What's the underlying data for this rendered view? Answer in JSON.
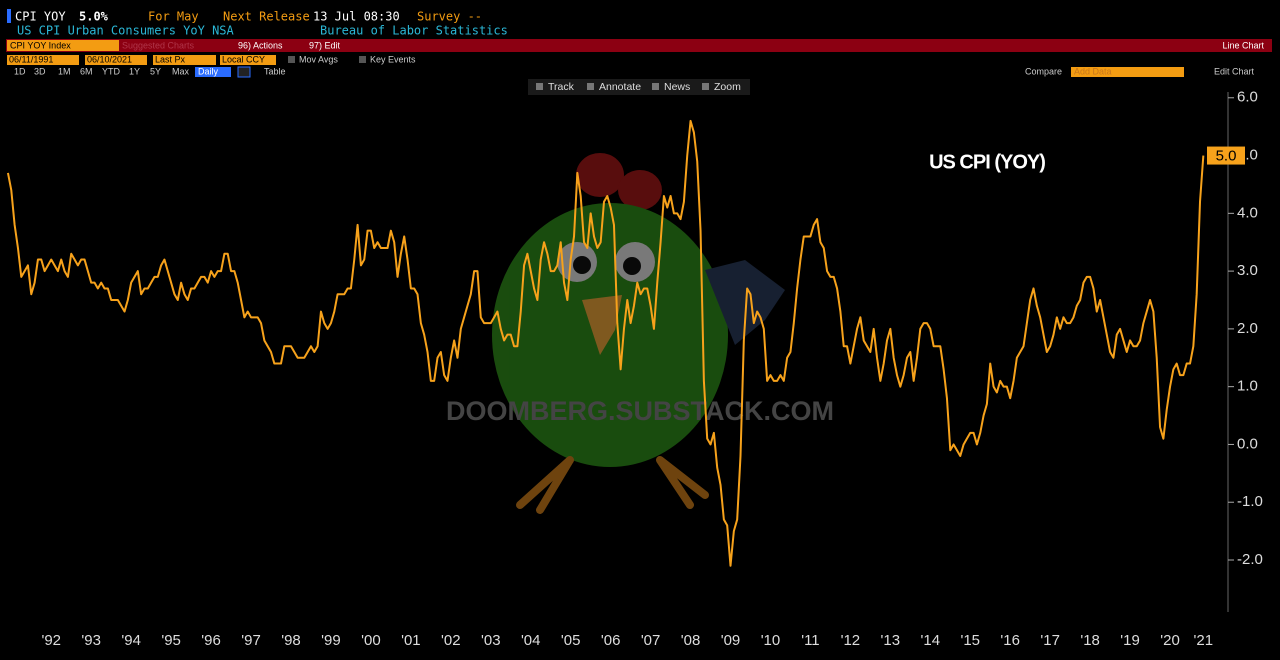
{
  "header": {
    "ticker": "CPI YOY",
    "value": "5.0%",
    "period": "For May",
    "next_release_label": "Next Release",
    "next_release": "13 Jul 08:30",
    "survey": "Survey --",
    "description": "US CPI Urban Consumers YoY NSA",
    "source": "Bureau of Labor Statistics"
  },
  "toolbar": {
    "security": "CPI YOY Index",
    "suggested": "Suggested Charts",
    "actions": "96) Actions",
    "edit": "97) Edit",
    "chart_type": "Line Chart",
    "start_date": "06/11/1991",
    "end_date": "06/10/2021",
    "field": "Last Px",
    "currency": "Local CCY",
    "mov_avgs": "Mov Avgs",
    "key_events": "Key Events",
    "ranges": [
      "1D",
      "3D",
      "1M",
      "6M",
      "YTD",
      "1Y",
      "5Y",
      "Max"
    ],
    "frequency": "Daily",
    "table": "Table",
    "compare": "Compare",
    "add_data": "Add Data",
    "edit_chart": "Edit Chart",
    "tools": [
      "Track",
      "Annotate",
      "News",
      "Zoom"
    ]
  },
  "chart_data": {
    "type": "line",
    "annotation": "US CPI (YOY)",
    "watermark": "DOOMBERG.SUBSTACK.COM",
    "color": "#f7a21b",
    "categories": [
      null,
      null,
      null,
      null,
      null,
      null,
      null,
      null,
      null,
      null,
      null,
      null,
      null,
      "'92",
      null,
      null,
      null,
      null,
      null,
      null,
      null,
      null,
      null,
      null,
      null,
      "'93",
      null,
      null,
      null,
      null,
      null,
      null,
      null,
      null,
      null,
      null,
      null,
      "'94",
      null,
      null,
      null,
      null,
      null,
      null,
      null,
      null,
      null,
      null,
      null,
      "'95",
      null,
      null,
      null,
      null,
      null,
      null,
      null,
      null,
      null,
      null,
      null,
      "'96",
      null,
      null,
      null,
      null,
      null,
      null,
      null,
      null,
      null,
      null,
      null,
      "'97",
      null,
      null,
      null,
      null,
      null,
      null,
      null,
      null,
      null,
      null,
      null,
      "'98",
      null,
      null,
      null,
      null,
      null,
      null,
      null,
      null,
      null,
      null,
      null,
      "'99",
      null,
      null,
      null,
      null,
      null,
      null,
      null,
      null,
      null,
      null,
      null,
      "'00",
      null,
      null,
      null,
      null,
      null,
      null,
      null,
      null,
      null,
      null,
      null,
      "'01",
      null,
      null,
      null,
      null,
      null,
      null,
      null,
      null,
      null,
      null,
      null,
      "'02",
      null,
      null,
      null,
      null,
      null,
      null,
      null,
      null,
      null,
      null,
      null,
      "'03",
      null,
      null,
      null,
      null,
      null,
      null,
      null,
      null,
      null,
      null,
      null,
      "'04",
      null,
      null,
      null,
      null,
      null,
      null,
      null,
      null,
      null,
      null,
      null,
      "'05",
      null,
      null,
      null,
      null,
      null,
      null,
      null,
      null,
      null,
      null,
      null,
      "'06",
      null,
      null,
      null,
      null,
      null,
      null,
      null,
      null,
      null,
      null,
      null,
      "'07",
      null,
      null,
      null,
      null,
      null,
      null,
      null,
      null,
      null,
      null,
      null,
      "'08",
      null,
      null,
      null,
      null,
      null,
      null,
      null,
      null,
      null,
      null,
      null,
      "'09",
      null,
      null,
      null,
      null,
      null,
      null,
      null,
      null,
      null,
      null,
      null,
      "'10",
      null,
      null,
      null,
      null,
      null,
      null,
      null,
      null,
      null,
      null,
      null,
      "'11",
      null,
      null,
      null,
      null,
      null,
      null,
      null,
      null,
      null,
      null,
      null,
      "'12",
      null,
      null,
      null,
      null,
      null,
      null,
      null,
      null,
      null,
      null,
      null,
      "'13",
      null,
      null,
      null,
      null,
      null,
      null,
      null,
      null,
      null,
      null,
      null,
      "'14",
      null,
      null,
      null,
      null,
      null,
      null,
      null,
      null,
      null,
      null,
      null,
      "'15",
      null,
      null,
      null,
      null,
      null,
      null,
      null,
      null,
      null,
      null,
      null,
      "'16",
      null,
      null,
      null,
      null,
      null,
      null,
      null,
      null,
      null,
      null,
      null,
      "'17",
      null,
      null,
      null,
      null,
      null,
      null,
      null,
      null,
      null,
      null,
      null,
      "'18",
      null,
      null,
      null,
      null,
      null,
      null,
      null,
      null,
      null,
      null,
      null,
      "'19",
      null,
      null,
      null,
      null,
      null,
      null,
      null,
      null,
      null,
      null,
      null,
      "'20",
      null,
      null,
      null,
      null,
      null,
      null,
      null,
      null,
      null,
      "'21"
    ],
    "values": [
      4.7,
      4.4,
      3.8,
      3.4,
      2.9,
      3.0,
      3.1,
      2.6,
      2.8,
      3.2,
      3.2,
      3.0,
      3.1,
      3.2,
      3.1,
      3.0,
      3.2,
      3.0,
      2.9,
      3.3,
      3.2,
      3.1,
      3.2,
      3.2,
      3.0,
      2.8,
      2.8,
      2.7,
      2.8,
      2.7,
      2.7,
      2.5,
      2.5,
      2.5,
      2.4,
      2.3,
      2.5,
      2.8,
      2.9,
      3.0,
      2.6,
      2.7,
      2.7,
      2.8,
      2.9,
      2.9,
      3.1,
      3.2,
      3.0,
      2.8,
      2.6,
      2.5,
      2.8,
      2.6,
      2.5,
      2.7,
      2.7,
      2.8,
      2.9,
      2.9,
      2.8,
      3.0,
      2.9,
      3.0,
      3.0,
      3.3,
      3.3,
      3.0,
      3.0,
      2.8,
      2.5,
      2.2,
      2.3,
      2.2,
      2.2,
      2.2,
      2.1,
      1.8,
      1.7,
      1.6,
      1.4,
      1.4,
      1.4,
      1.7,
      1.7,
      1.7,
      1.6,
      1.5,
      1.5,
      1.5,
      1.6,
      1.7,
      1.6,
      1.7,
      2.3,
      2.1,
      2.0,
      2.1,
      2.3,
      2.6,
      2.6,
      2.6,
      2.7,
      2.7,
      3.2,
      3.8,
      3.1,
      3.2,
      3.7,
      3.7,
      3.4,
      3.5,
      3.4,
      3.4,
      3.4,
      3.7,
      3.5,
      2.9,
      3.3,
      3.6,
      3.2,
      2.7,
      2.7,
      2.6,
      2.1,
      1.9,
      1.6,
      1.1,
      1.1,
      1.5,
      1.6,
      1.2,
      1.1,
      1.5,
      1.8,
      1.5,
      2.0,
      2.2,
      2.4,
      2.6,
      3.0,
      3.0,
      2.2,
      2.1,
      2.1,
      2.1,
      2.2,
      2.3,
      2.0,
      1.8,
      1.9,
      1.9,
      1.7,
      1.7,
      2.3,
      3.1,
      3.3,
      3.0,
      2.7,
      2.5,
      3.2,
      3.5,
      3.3,
      3.0,
      3.0,
      3.1,
      3.5,
      2.8,
      2.5,
      3.2,
      3.6,
      4.7,
      4.3,
      3.5,
      3.4,
      4.0,
      3.6,
      3.4,
      3.5,
      4.2,
      4.3,
      4.1,
      3.8,
      2.1,
      1.3,
      2.0,
      2.5,
      2.1,
      2.4,
      2.8,
      2.6,
      2.7,
      2.7,
      2.4,
      2.0,
      2.8,
      3.5,
      4.3,
      4.1,
      4.3,
      4.0,
      4.0,
      3.9,
      4.2,
      5.0,
      5.6,
      5.4,
      4.9,
      3.7,
      1.1,
      0.1,
      0.0,
      0.2,
      -0.4,
      -0.7,
      -1.3,
      -1.4,
      -2.1,
      -1.5,
      -1.3,
      -0.2,
      1.8,
      2.7,
      2.6,
      2.1,
      2.3,
      2.2,
      2.0,
      1.1,
      1.2,
      1.1,
      1.1,
      1.2,
      1.1,
      1.5,
      1.6,
      2.1,
      2.7,
      3.2,
      3.6,
      3.6,
      3.6,
      3.8,
      3.9,
      3.5,
      3.4,
      3.0,
      2.9,
      2.9,
      2.7,
      2.3,
      1.7,
      1.7,
      1.4,
      1.7,
      2.0,
      2.2,
      1.8,
      1.7,
      1.6,
      2.0,
      1.5,
      1.1,
      1.4,
      1.8,
      2.0,
      1.5,
      1.2,
      1.0,
      1.2,
      1.5,
      1.6,
      1.1,
      1.5,
      2.0,
      2.1,
      2.1,
      2.0,
      1.7,
      1.7,
      1.7,
      1.3,
      0.8,
      -0.1,
      0.0,
      -0.1,
      -0.2,
      0.0,
      0.1,
      0.2,
      0.2,
      0.0,
      0.2,
      0.5,
      0.7,
      1.4,
      1.0,
      0.9,
      1.1,
      1.0,
      1.0,
      0.8,
      1.1,
      1.5,
      1.6,
      1.7,
      2.1,
      2.5,
      2.7,
      2.4,
      2.2,
      1.9,
      1.6,
      1.7,
      1.9,
      2.2,
      2.0,
      2.2,
      2.1,
      2.1,
      2.2,
      2.4,
      2.5,
      2.8,
      2.9,
      2.9,
      2.7,
      2.3,
      2.5,
      2.2,
      1.9,
      1.6,
      1.5,
      1.9,
      2.0,
      1.8,
      1.6,
      1.8,
      1.7,
      1.7,
      1.8,
      2.1,
      2.3,
      2.5,
      2.3,
      1.5,
      0.3,
      0.1,
      0.6,
      1.0,
      1.3,
      1.4,
      1.2,
      1.2,
      1.4,
      1.4,
      1.7,
      2.6,
      4.2,
      5.0
    ],
    "last_marker": {
      "value": 5.0,
      "label": "5.0"
    },
    "ylim": [
      -2.9,
      6.1
    ],
    "yticks": [
      {
        "value": 6,
        "label": "6.0"
      },
      {
        "value": 5,
        "label": "5.0"
      },
      {
        "value": 4,
        "label": "4.0"
      },
      {
        "value": 3,
        "label": "3.0"
      },
      {
        "value": 2,
        "label": "2.0"
      },
      {
        "value": 1,
        "label": "1.0"
      },
      {
        "value": 0,
        "label": "0.0"
      },
      {
        "value": -1,
        "label": "-1.0"
      },
      {
        "value": -2,
        "label": "-2.0"
      }
    ]
  }
}
